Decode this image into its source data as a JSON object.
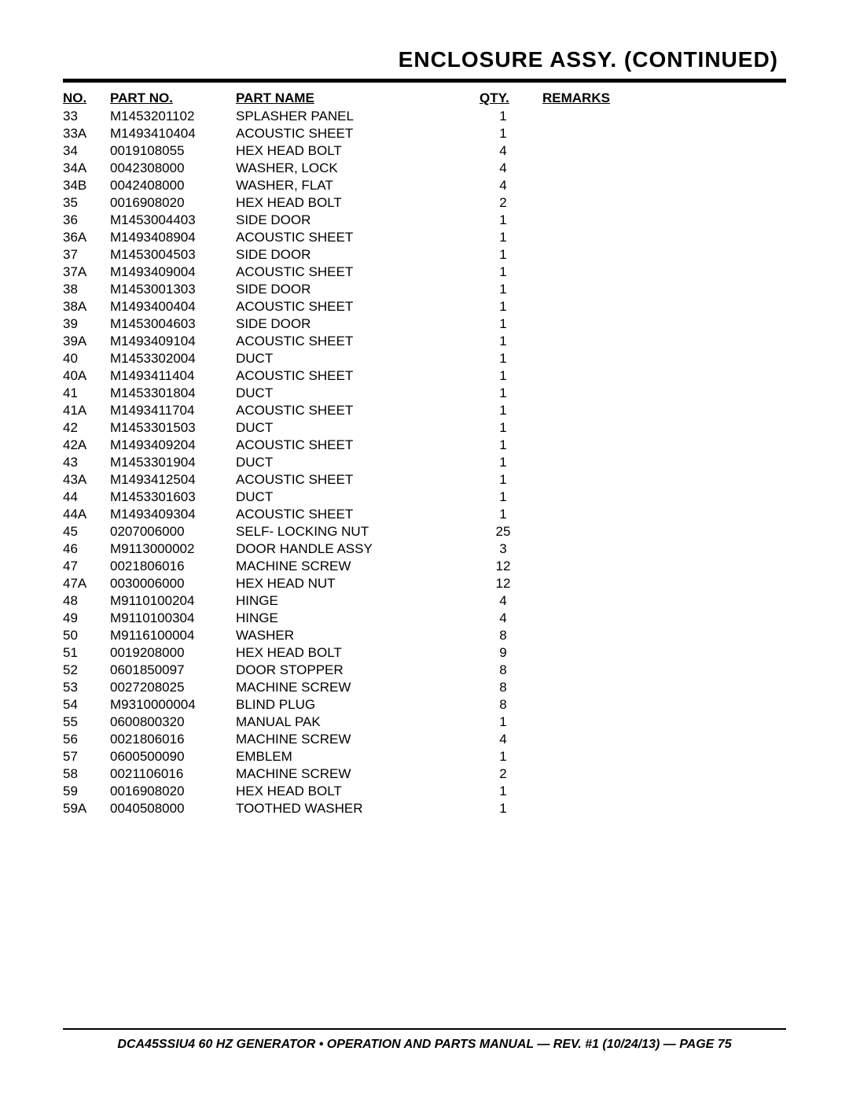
{
  "title": "ENCLOSURE ASSY. (CONTINUED)",
  "columns": {
    "no": "NO.",
    "partno": "PART NO.",
    "partname": "PART NAME",
    "qty": "QTY.",
    "remarks": "REMARKS"
  },
  "rows": [
    {
      "no": "33",
      "partno": "M1453201102",
      "partname": "SPLASHER PANEL",
      "qty": "1",
      "remarks": ""
    },
    {
      "no": "33A",
      "partno": "M1493410404",
      "partname": "ACOUSTIC SHEET",
      "qty": "1",
      "remarks": ""
    },
    {
      "no": "34",
      "partno": "0019108055",
      "partname": "HEX HEAD BOLT",
      "qty": "4",
      "remarks": ""
    },
    {
      "no": "34A",
      "partno": "0042308000",
      "partname": "WASHER, LOCK",
      "qty": "4",
      "remarks": ""
    },
    {
      "no": "34B",
      "partno": "0042408000",
      "partname": "WASHER, FLAT",
      "qty": "4",
      "remarks": ""
    },
    {
      "no": "35",
      "partno": "0016908020",
      "partname": "HEX HEAD BOLT",
      "qty": "2",
      "remarks": ""
    },
    {
      "no": "36",
      "partno": "M1453004403",
      "partname": "SIDE DOOR",
      "qty": "1",
      "remarks": ""
    },
    {
      "no": "36A",
      "partno": "M1493408904",
      "partname": "ACOUSTIC SHEET",
      "qty": "1",
      "remarks": ""
    },
    {
      "no": "37",
      "partno": "M1453004503",
      "partname": "SIDE DOOR",
      "qty": "1",
      "remarks": ""
    },
    {
      "no": "37A",
      "partno": "M1493409004",
      "partname": "ACOUSTIC SHEET",
      "qty": "1",
      "remarks": ""
    },
    {
      "no": "38",
      "partno": "M1453001303",
      "partname": "SIDE DOOR",
      "qty": "1",
      "remarks": ""
    },
    {
      "no": "38A",
      "partno": "M1493400404",
      "partname": "ACOUSTIC SHEET",
      "qty": "1",
      "remarks": ""
    },
    {
      "no": "39",
      "partno": "M1453004603",
      "partname": "SIDE DOOR",
      "qty": "1",
      "remarks": ""
    },
    {
      "no": "39A",
      "partno": "M1493409104",
      "partname": "ACOUSTIC SHEET",
      "qty": "1",
      "remarks": ""
    },
    {
      "no": "40",
      "partno": "M1453302004",
      "partname": "DUCT",
      "qty": "1",
      "remarks": ""
    },
    {
      "no": "40A",
      "partno": "M1493411404",
      "partname": "ACOUSTIC SHEET",
      "qty": "1",
      "remarks": ""
    },
    {
      "no": "41",
      "partno": "M1453301804",
      "partname": "DUCT",
      "qty": "1",
      "remarks": ""
    },
    {
      "no": "41A",
      "partno": "M1493411704",
      "partname": "ACOUSTIC SHEET",
      "qty": "1",
      "remarks": ""
    },
    {
      "no": "42",
      "partno": "M1453301503",
      "partname": "DUCT",
      "qty": "1",
      "remarks": ""
    },
    {
      "no": "42A",
      "partno": "M1493409204",
      "partname": "ACOUSTIC SHEET",
      "qty": "1",
      "remarks": ""
    },
    {
      "no": "43",
      "partno": "M1453301904",
      "partname": "DUCT",
      "qty": "1",
      "remarks": ""
    },
    {
      "no": "43A",
      "partno": "M1493412504",
      "partname": "ACOUSTIC SHEET",
      "qty": "1",
      "remarks": ""
    },
    {
      "no": "44",
      "partno": "M1453301603",
      "partname": "DUCT",
      "qty": "1",
      "remarks": ""
    },
    {
      "no": "44A",
      "partno": "M1493409304",
      "partname": "ACOUSTIC SHEET",
      "qty": "1",
      "remarks": ""
    },
    {
      "no": "45",
      "partno": "0207006000",
      "partname": "SELF- LOCKING NUT",
      "qty": "25",
      "remarks": ""
    },
    {
      "no": "46",
      "partno": "M9113000002",
      "partname": "DOOR HANDLE ASSY",
      "qty": "3",
      "remarks": ""
    },
    {
      "no": "47",
      "partno": "0021806016",
      "partname": "MACHINE SCREW",
      "qty": "12",
      "remarks": ""
    },
    {
      "no": "47A",
      "partno": "0030006000",
      "partname": "HEX HEAD NUT",
      "qty": "12",
      "remarks": ""
    },
    {
      "no": "48",
      "partno": "M9110100204",
      "partname": "HINGE",
      "qty": "4",
      "remarks": ""
    },
    {
      "no": "49",
      "partno": "M9110100304",
      "partname": "HINGE",
      "qty": "4",
      "remarks": ""
    },
    {
      "no": "50",
      "partno": "M9116100004",
      "partname": "WASHER",
      "qty": "8",
      "remarks": ""
    },
    {
      "no": "51",
      "partno": "0019208000",
      "partname": "HEX HEAD BOLT",
      "qty": "9",
      "remarks": ""
    },
    {
      "no": "52",
      "partno": "0601850097",
      "partname": "DOOR STOPPER",
      "qty": "8",
      "remarks": ""
    },
    {
      "no": "53",
      "partno": "0027208025",
      "partname": "MACHINE SCREW",
      "qty": "8",
      "remarks": ""
    },
    {
      "no": "54",
      "partno": "M9310000004",
      "partname": "BLIND PLUG",
      "qty": "8",
      "remarks": ""
    },
    {
      "no": "55",
      "partno": "0600800320",
      "partname": "MANUAL PAK",
      "qty": "1",
      "remarks": ""
    },
    {
      "no": "56",
      "partno": "0021806016",
      "partname": "MACHINE SCREW",
      "qty": "4",
      "remarks": ""
    },
    {
      "no": "57",
      "partno": "0600500090",
      "partname": "EMBLEM",
      "qty": "1",
      "remarks": ""
    },
    {
      "no": "58",
      "partno": "0021106016",
      "partname": "MACHINE SCREW",
      "qty": "2",
      "remarks": ""
    },
    {
      "no": "59",
      "partno": "0016908020",
      "partname": "HEX HEAD BOLT",
      "qty": "1",
      "remarks": ""
    },
    {
      "no": "59A",
      "partno": "0040508000",
      "partname": "TOOTHED WASHER",
      "qty": "1",
      "remarks": ""
    }
  ],
  "footer": "DCA45SSIU4 60 HZ GENERATOR • OPERATION AND PARTS MANUAL — REV. #1 (10/24/13) — PAGE 75"
}
